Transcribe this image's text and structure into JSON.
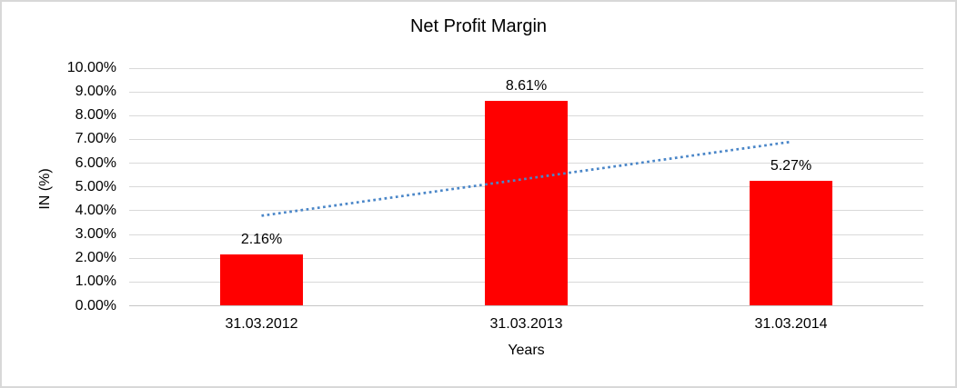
{
  "chart_data": {
    "type": "bar",
    "title": "Net Profit Margin",
    "xlabel": "Years",
    "ylabel": "IN (%)",
    "categories": [
      "31.03.2012",
      "31.03.2013",
      "31.03.2014"
    ],
    "values": [
      2.16,
      8.61,
      5.27
    ],
    "data_labels": [
      "2.16%",
      "8.61%",
      "5.27%"
    ],
    "ylim": [
      0,
      10
    ],
    "ytick_step": 1,
    "ytick_labels": [
      "0.00%",
      "1.00%",
      "2.00%",
      "3.00%",
      "4.00%",
      "5.00%",
      "6.00%",
      "7.00%",
      "8.00%",
      "9.00%",
      "10.00%"
    ],
    "grid": true,
    "legend": "none",
    "bar_color": "#ff0000",
    "trendline": {
      "type": "linear",
      "style": "dotted",
      "color": "#4a86c8",
      "start_value": 3.79,
      "end_value": 6.9
    }
  },
  "colors": {
    "gridline": "#d9d9d9",
    "axis_line": "#c6c6c6",
    "frame_border": "#d8d8d8",
    "text": "#000000"
  }
}
